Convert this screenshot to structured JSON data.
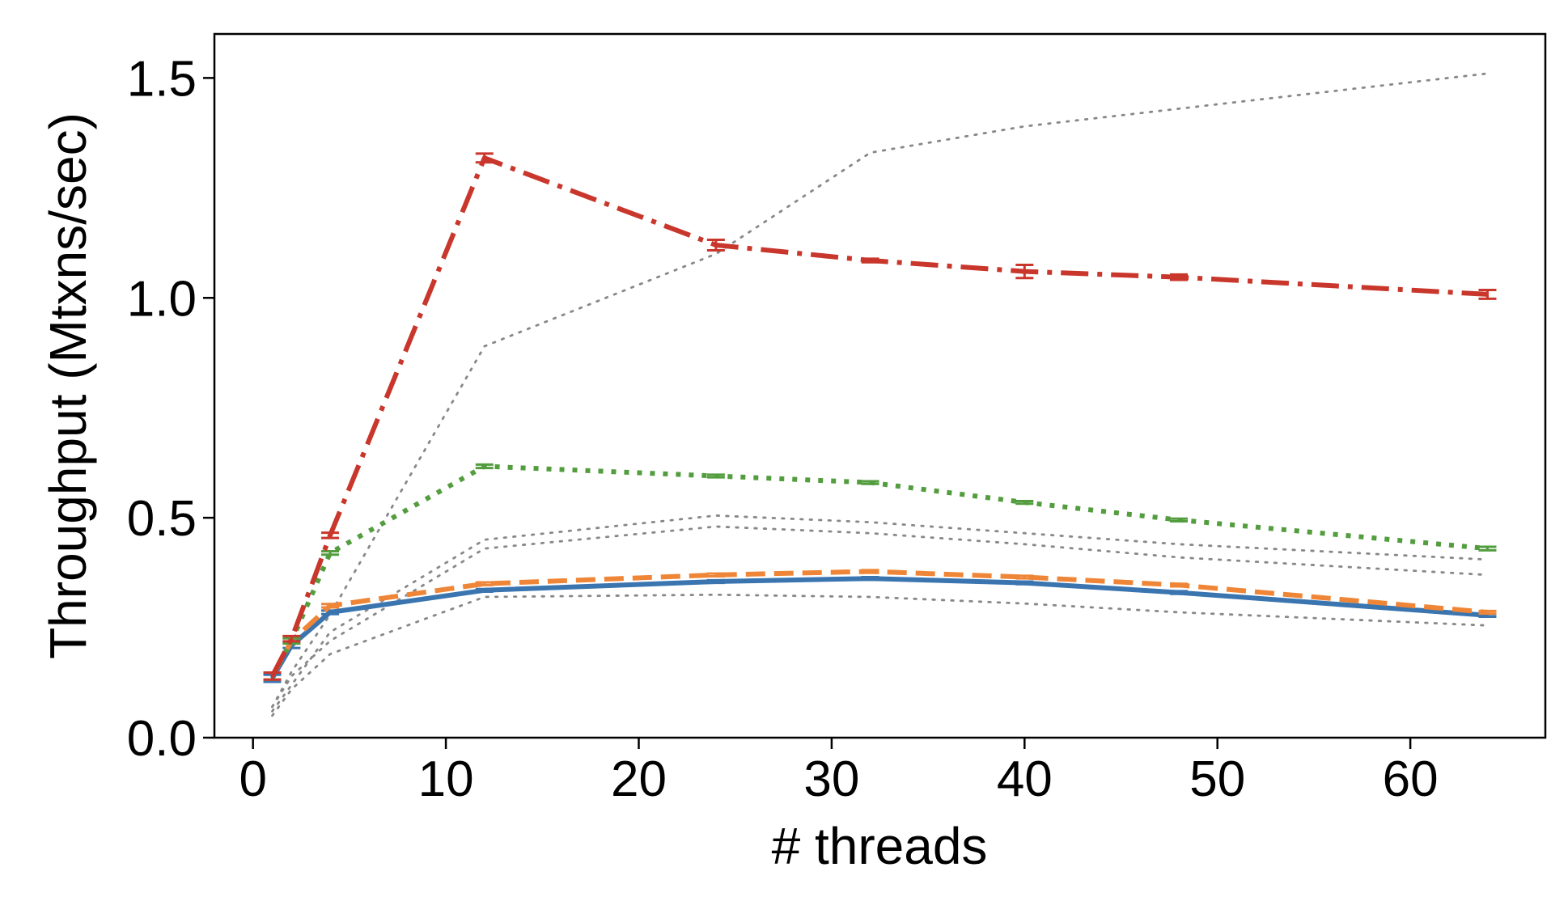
{
  "chart_data": {
    "type": "line",
    "xlabel": "# threads",
    "ylabel": "Throughput (Mtxns/sec)",
    "xlim": [
      -2,
      67
    ],
    "ylim": [
      0,
      1.6
    ],
    "x_ticks": [
      "0",
      "10",
      "20",
      "30",
      "40",
      "50",
      "60"
    ],
    "y_ticks": [
      "0.0",
      "0.5",
      "1.0",
      "1.5"
    ],
    "x_tick_values": [
      0,
      10,
      20,
      30,
      40,
      50,
      60
    ],
    "y_tick_values": [
      0,
      0.5,
      1.0,
      1.5
    ],
    "grid": false,
    "legend": "none",
    "series": [
      {
        "style": "solid",
        "color": "#3a75b0",
        "x": [
          1,
          2,
          4,
          12,
          24,
          32,
          40,
          48,
          64
        ],
        "y": [
          0.135,
          0.21,
          0.285,
          0.335,
          0.355,
          0.362,
          0.352,
          0.33,
          0.278
        ],
        "err": [
          0.008,
          0.006,
          0.004,
          0.003,
          0.003,
          0.003,
          0.003,
          0.003,
          0.003
        ]
      },
      {
        "style": "dashed",
        "color": "#ef8536",
        "x": [
          1,
          2,
          4,
          12,
          24,
          32,
          40,
          48,
          64
        ],
        "y": [
          0.14,
          0.22,
          0.3,
          0.35,
          0.37,
          0.378,
          0.365,
          0.347,
          0.285
        ],
        "err": [
          0.008,
          0.006,
          0.004,
          0.003,
          0.003,
          0.003,
          0.003,
          0.003,
          0.003
        ]
      },
      {
        "style": "dotted",
        "color": "#539d3f",
        "x": [
          1,
          2,
          4,
          12,
          24,
          32,
          40,
          48,
          64
        ],
        "y": [
          0.14,
          0.22,
          0.42,
          0.617,
          0.595,
          0.58,
          0.535,
          0.495,
          0.43
        ],
        "err": [
          0.008,
          0.006,
          0.004,
          0.004,
          0.003,
          0.003,
          0.003,
          0.003,
          0.004
        ]
      },
      {
        "style": "dashdot",
        "color": "#c9372c",
        "x": [
          1,
          2,
          4,
          12,
          24,
          32,
          40,
          48,
          64
        ],
        "y": [
          0.14,
          0.225,
          0.46,
          1.318,
          1.12,
          1.085,
          1.06,
          1.047,
          1.008
        ],
        "err": [
          0.008,
          0.006,
          0.006,
          0.01,
          0.012,
          0.004,
          0.015,
          0.006,
          0.01
        ]
      }
    ],
    "reference_series": [
      {
        "style": "dotted-thin",
        "color": "#888888",
        "x": [
          1,
          2,
          4,
          12,
          24,
          32,
          40,
          48,
          64
        ],
        "y": [
          0.07,
          0.15,
          0.28,
          0.89,
          1.1,
          1.33,
          1.39,
          1.43,
          1.51
        ]
      },
      {
        "style": "dotted-thin",
        "color": "#888888",
        "x": [
          1,
          2,
          4,
          12,
          24,
          32,
          40,
          48,
          64
        ],
        "y": [
          0.06,
          0.12,
          0.24,
          0.45,
          0.505,
          0.49,
          0.465,
          0.44,
          0.405
        ]
      },
      {
        "style": "dotted-thin",
        "color": "#888888",
        "x": [
          1,
          2,
          4,
          12,
          24,
          32,
          40,
          48,
          64
        ],
        "y": [
          0.07,
          0.14,
          0.22,
          0.43,
          0.48,
          0.465,
          0.44,
          0.41,
          0.37
        ]
      },
      {
        "style": "dotted-thin",
        "color": "#888888",
        "x": [
          1,
          2,
          4,
          12,
          24,
          32,
          40,
          48,
          64
        ],
        "y": [
          0.05,
          0.11,
          0.19,
          0.32,
          0.325,
          0.32,
          0.305,
          0.285,
          0.255
        ]
      }
    ]
  }
}
